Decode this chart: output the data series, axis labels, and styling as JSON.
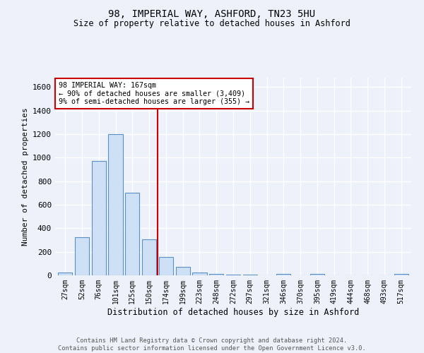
{
  "title": "98, IMPERIAL WAY, ASHFORD, TN23 5HU",
  "subtitle": "Size of property relative to detached houses in Ashford",
  "xlabel": "Distribution of detached houses by size in Ashford",
  "ylabel": "Number of detached properties",
  "bar_labels": [
    "27sqm",
    "52sqm",
    "76sqm",
    "101sqm",
    "125sqm",
    "150sqm",
    "174sqm",
    "199sqm",
    "223sqm",
    "248sqm",
    "272sqm",
    "297sqm",
    "321sqm",
    "346sqm",
    "370sqm",
    "395sqm",
    "419sqm",
    "444sqm",
    "468sqm",
    "493sqm",
    "517sqm"
  ],
  "bar_values": [
    25,
    325,
    970,
    1200,
    700,
    305,
    155,
    75,
    25,
    15,
    5,
    5,
    0,
    10,
    0,
    10,
    0,
    0,
    0,
    0,
    10
  ],
  "bar_color": "#cde0f5",
  "bar_edgecolor": "#5a90c8",
  "background_color": "#edf2fa",
  "grid_color": "#ffffff",
  "property_line_x": 5.5,
  "annotation_line1": "98 IMPERIAL WAY: 167sqm",
  "annotation_line2": "← 90% of detached houses are smaller (3,409)",
  "annotation_line3": "9% of semi-detached houses are larger (355) →",
  "annotation_box_color": "#ffffff",
  "annotation_box_edgecolor": "#cc0000",
  "vline_color": "#cc0000",
  "yticks": [
    0,
    200,
    400,
    600,
    800,
    1000,
    1200,
    1400,
    1600
  ],
  "ylim": [
    0,
    1680
  ],
  "footer1": "Contains HM Land Registry data © Crown copyright and database right 2024.",
  "footer2": "Contains public sector information licensed under the Open Government Licence v3.0."
}
